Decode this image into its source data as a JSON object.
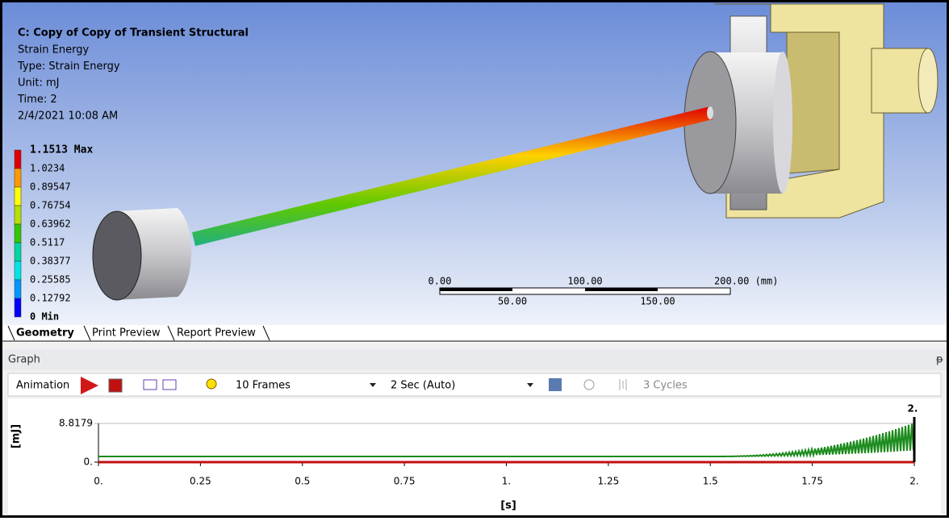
{
  "viewport": {
    "title": "C: Copy of Copy of Transient Structural",
    "lines": [
      "Strain Energy",
      "Type: Strain Energy",
      "Unit: mJ",
      "Time: 2",
      "2/4/2021 10:08 AM"
    ],
    "legend": {
      "labels": [
        "1.1513 Max",
        "1.0234",
        "0.89547",
        "0.76754",
        "0.63962",
        "0.5117",
        "0.38377",
        "0.25585",
        "0.12792",
        "0 Min"
      ],
      "colors": [
        "#e00000",
        "#ff9a00",
        "#ffff00",
        "#b8e000",
        "#32c800",
        "#00d7a0",
        "#00e6e6",
        "#0096ff",
        "#0000ff"
      ]
    },
    "scale_bar": {
      "top_labels": [
        "0.00",
        "100.00",
        "200.00 (mm)"
      ],
      "bottom_labels": [
        "50.00",
        "150.00"
      ]
    }
  },
  "tabs": [
    "Geometry",
    "Print Preview",
    "Report Preview"
  ],
  "graph_panel": {
    "title": "Graph",
    "toolbar": {
      "animation": "Animation",
      "frames": "10 Frames",
      "duration": "2 Sec (Auto)",
      "cycles": "3 Cycles"
    },
    "graph": {
      "ylabel": "[mJ]",
      "xlabel": "[s]",
      "marker_label": "2.",
      "xlim": [
        0,
        2
      ],
      "ylim": [
        0,
        8.8179
      ],
      "xticks": [
        {
          "value": 0,
          "label": "0."
        },
        0.25,
        0.5,
        0.75,
        {
          "value": 1,
          "label": "1."
        },
        1.25,
        1.5,
        1.75,
        {
          "value": 2,
          "label": "2."
        }
      ],
      "yticks": [
        {
          "value": 0,
          "label": "0."
        },
        8.8179
      ]
    }
  }
}
